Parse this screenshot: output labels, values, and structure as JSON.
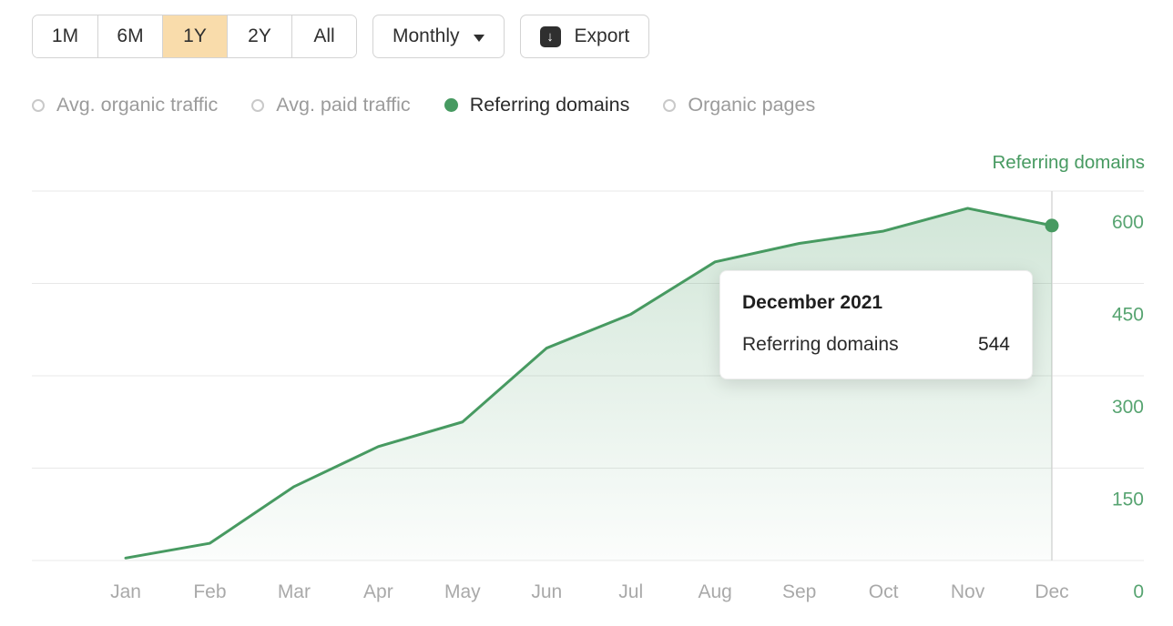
{
  "toolbar": {
    "ranges": [
      {
        "label": "1M",
        "active": false
      },
      {
        "label": "6M",
        "active": false
      },
      {
        "label": "1Y",
        "active": true
      },
      {
        "label": "2Y",
        "active": false
      },
      {
        "label": "All",
        "active": false
      }
    ],
    "granularity": {
      "label": "Monthly"
    },
    "export_label": "Export",
    "active_range_color": "#f9dcab"
  },
  "legend": {
    "items": [
      {
        "label": "Avg. organic traffic",
        "selected": false
      },
      {
        "label": "Avg. paid traffic",
        "selected": false
      },
      {
        "label": "Referring domains",
        "selected": true
      },
      {
        "label": "Organic pages",
        "selected": false
      }
    ]
  },
  "chart": {
    "axis_title": "Referring domains"
  },
  "tooltip": {
    "title": "December 2021",
    "row_label": "Referring domains",
    "row_value": "544"
  },
  "chart_data": {
    "type": "area",
    "title": "Referring domains",
    "categories": [
      "Jan",
      "Feb",
      "Mar",
      "Apr",
      "May",
      "Jun",
      "Jul",
      "Aug",
      "Sep",
      "Oct",
      "Nov",
      "Dec"
    ],
    "series": [
      {
        "name": "Referring domains",
        "values": [
          4,
          28,
          120,
          185,
          225,
          345,
          400,
          485,
          515,
          535,
          572,
          544
        ]
      }
    ],
    "xlabel": "",
    "ylabel": "Referring domains",
    "y_ticks": [
      600,
      450,
      300,
      150,
      0
    ],
    "ylim": [
      0,
      600
    ],
    "grid": true,
    "legend_position": "top",
    "line_color": "#479a61",
    "tick_color": "#57a471",
    "x_tick_color": "#a9a9a9",
    "highlight": {
      "category": "Dec",
      "value": 544,
      "label": "December 2021"
    }
  }
}
